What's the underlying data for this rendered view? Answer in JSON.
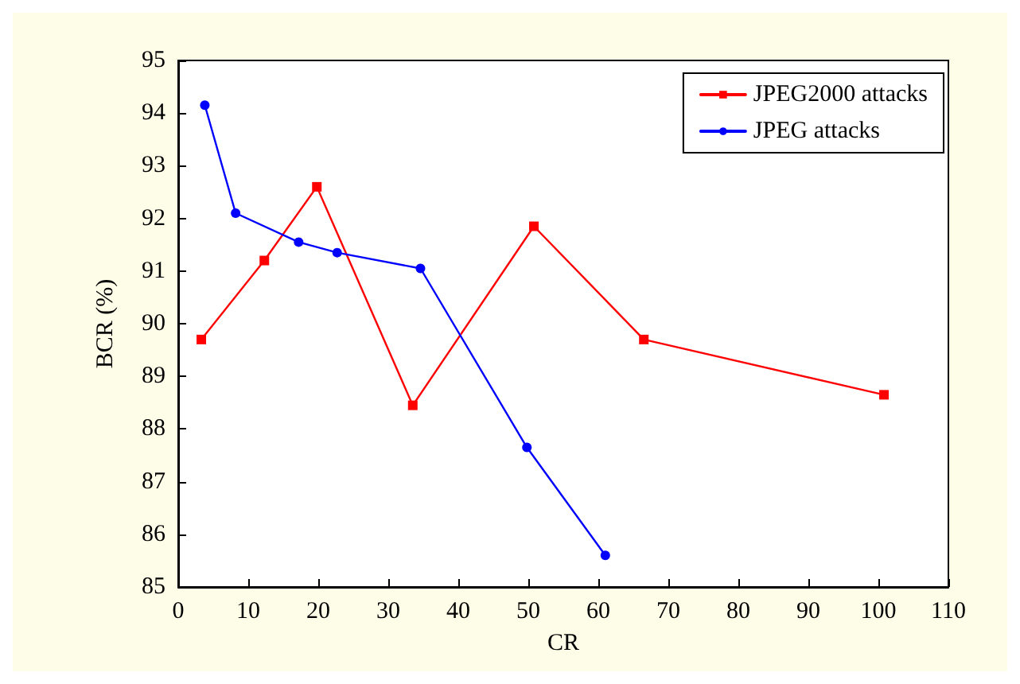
{
  "chart_data": {
    "type": "line",
    "xlabel": "CR",
    "ylabel": "BCR (%)",
    "xlim": [
      0,
      110
    ],
    "xticks": [
      0,
      10,
      20,
      30,
      40,
      50,
      60,
      70,
      80,
      90,
      100,
      110
    ],
    "ylim": [
      85,
      95
    ],
    "yticks": [
      85,
      86,
      87,
      88,
      89,
      90,
      91,
      92,
      93,
      94,
      95
    ],
    "grid": false,
    "legend": "top right",
    "line_style": "solid",
    "series": [
      {
        "name": "JPEG2000 attacks",
        "color": "#ff0000",
        "marker": "square",
        "x": [
          3.3,
          12.3,
          19.8,
          33.5,
          50.8,
          66.5,
          100.8
        ],
        "values": [
          89.7,
          91.2,
          92.6,
          88.45,
          91.85,
          89.7,
          88.65
        ]
      },
      {
        "name": "JPEG attacks",
        "color": "#0000ff",
        "marker": "circle",
        "x": [
          3.8,
          8.2,
          17.2,
          22.7,
          34.6,
          49.8,
          61
        ],
        "values": [
          94.15,
          92.1,
          91.55,
          91.35,
          91.05,
          87.65,
          85.6
        ]
      }
    ]
  }
}
